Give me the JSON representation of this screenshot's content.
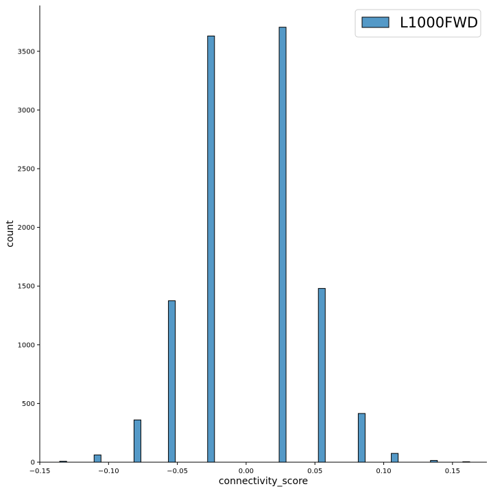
{
  "chart_data": {
    "type": "bar",
    "subtype": "histogram",
    "xlabel": "connectivity_score",
    "ylabel": "count",
    "xlim": [
      -0.15,
      0.175
    ],
    "ylim": [
      0,
      3890
    ],
    "xticks": [
      {
        "value": -0.15,
        "label": "−0.15"
      },
      {
        "value": -0.1,
        "label": "−0.10"
      },
      {
        "value": -0.05,
        "label": "−0.05"
      },
      {
        "value": 0.0,
        "label": "0.00"
      },
      {
        "value": 0.05,
        "label": "0.05"
      },
      {
        "value": 0.1,
        "label": "0.10"
      },
      {
        "value": 0.15,
        "label": "0.15"
      }
    ],
    "yticks": [
      {
        "value": 0,
        "label": "0"
      },
      {
        "value": 500,
        "label": "500"
      },
      {
        "value": 1000,
        "label": "1000"
      },
      {
        "value": 1500,
        "label": "1500"
      },
      {
        "value": 2000,
        "label": "2000"
      },
      {
        "value": 2500,
        "label": "2500"
      },
      {
        "value": 3000,
        "label": "3000"
      },
      {
        "value": 3500,
        "label": "3500"
      }
    ],
    "bin_width": 0.005,
    "bins": [
      {
        "x0": -0.1355,
        "x1": -0.1305,
        "count": 8
      },
      {
        "x0": -0.1105,
        "x1": -0.1055,
        "count": 62
      },
      {
        "x0": -0.0815,
        "x1": -0.0765,
        "count": 360
      },
      {
        "x0": -0.0565,
        "x1": -0.0515,
        "count": 1375
      },
      {
        "x0": -0.028,
        "x1": -0.023,
        "count": 3630
      },
      {
        "x0": 0.024,
        "x1": 0.029,
        "count": 3705
      },
      {
        "x0": 0.0525,
        "x1": 0.0575,
        "count": 1480
      },
      {
        "x0": 0.0815,
        "x1": 0.0865,
        "count": 415
      },
      {
        "x0": 0.1055,
        "x1": 0.1105,
        "count": 75
      },
      {
        "x0": 0.134,
        "x1": 0.139,
        "count": 15
      },
      {
        "x0": 0.1575,
        "x1": 0.1625,
        "count": 4
      }
    ],
    "series": [
      {
        "name": "L1000FWD",
        "color": "#5499c7"
      }
    ],
    "legend": {
      "position": "top-right"
    },
    "grid": false
  }
}
